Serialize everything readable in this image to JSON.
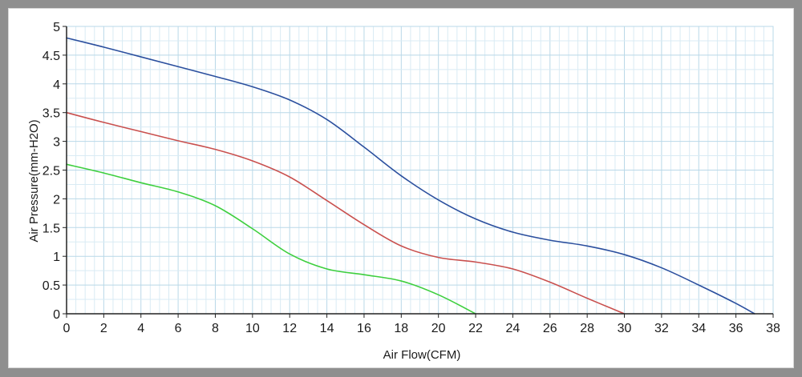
{
  "chart_data": {
    "type": "line",
    "title": "",
    "xlabel": "Air Flow(CFM)",
    "ylabel": "Air Pressure(mm-H2O)",
    "xlim": [
      0,
      38
    ],
    "ylim": [
      0,
      5
    ],
    "x_ticks": [
      "0",
      "2",
      "4",
      "6",
      "8",
      "10",
      "12",
      "14",
      "16",
      "18",
      "20",
      "22",
      "24",
      "26",
      "28",
      "30",
      "32",
      "34",
      "36",
      "38"
    ],
    "y_ticks": [
      "0",
      "0.5",
      "1",
      "1.5",
      "2",
      "2.5",
      "3",
      "3.5",
      "4",
      "4.5",
      "5"
    ],
    "grid": true,
    "legend": "none",
    "series": [
      {
        "color": "#2b4f9e",
        "x": [
          0,
          2,
          4,
          6,
          8,
          10,
          12,
          14,
          16,
          18,
          20,
          22,
          24,
          26,
          28,
          30,
          32,
          34,
          36,
          37
        ],
        "y": [
          4.8,
          4.64,
          4.47,
          4.3,
          4.13,
          3.95,
          3.72,
          3.38,
          2.9,
          2.4,
          1.98,
          1.65,
          1.42,
          1.28,
          1.18,
          1.03,
          0.8,
          0.5,
          0.18,
          0.0
        ]
      },
      {
        "color": "#c9504e",
        "x": [
          0,
          2,
          4,
          6,
          8,
          10,
          12,
          14,
          16,
          18,
          20,
          22,
          24,
          26,
          28,
          30
        ],
        "y": [
          3.5,
          3.33,
          3.17,
          3.01,
          2.86,
          2.66,
          2.38,
          1.97,
          1.55,
          1.18,
          0.98,
          0.9,
          0.78,
          0.55,
          0.27,
          0.0
        ]
      },
      {
        "color": "#3ecf3e",
        "x": [
          0,
          2,
          4,
          6,
          8,
          10,
          12,
          14,
          16,
          18,
          20,
          22
        ],
        "y": [
          2.6,
          2.45,
          2.28,
          2.12,
          1.88,
          1.48,
          1.04,
          0.78,
          0.68,
          0.57,
          0.33,
          0.0
        ]
      }
    ]
  }
}
